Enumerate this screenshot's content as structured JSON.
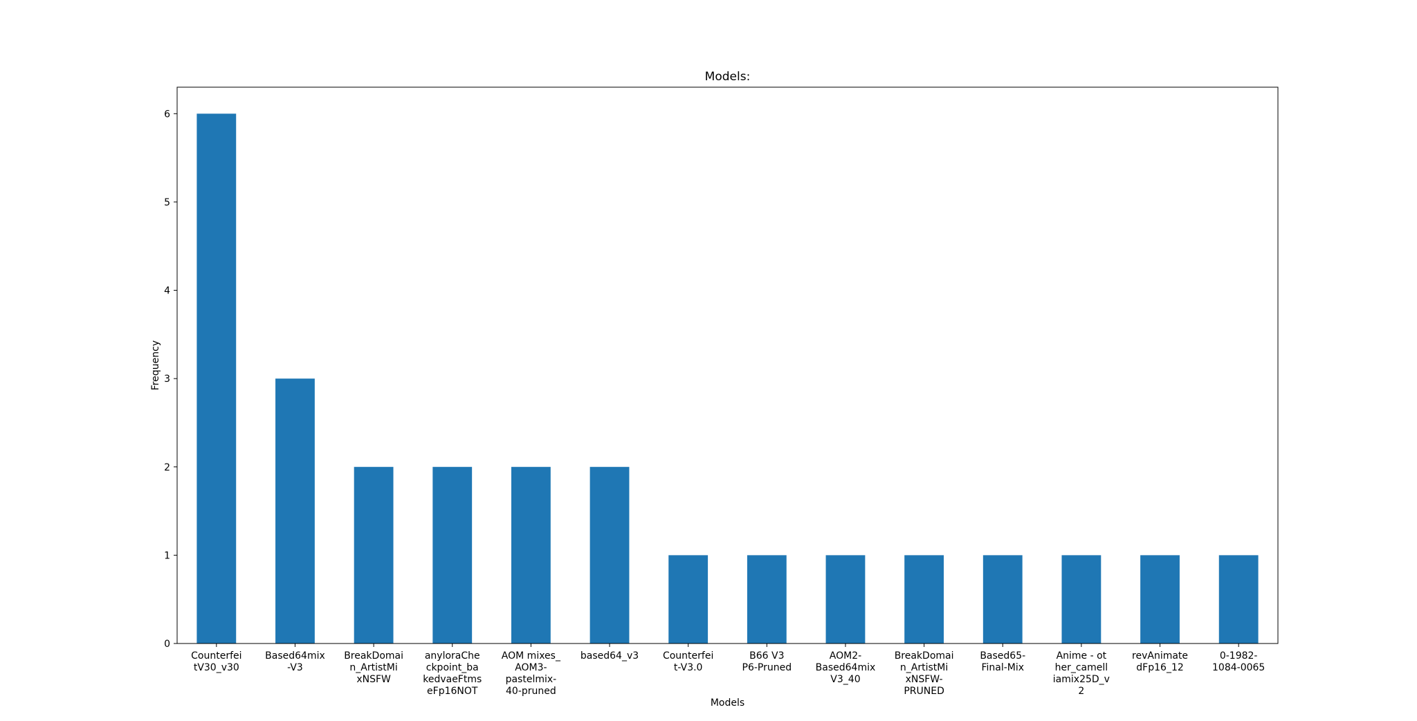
{
  "chart_data": {
    "type": "bar",
    "title": "Models:",
    "xlabel": "Models",
    "ylabel": "Frequency",
    "categories": [
      "Counterfei\ntV30_v30",
      "Based64mix\n-V3",
      "BreakDomai\nn_ArtistMi\nxNSFW",
      "anyloraChe\nckpoint_ba\nkedvaeFtms\neFp16NOT",
      "AOM mixes_\nAOM3-\npastelmix-\n40-pruned",
      "based64_v3",
      "Counterfei\nt-V3.0",
      "B66 V3\nP6-Pruned",
      "AOM2-\nBased64mix\nV3_40",
      "BreakDomai\nn_ArtistMi\nxNSFW-\nPRUNED",
      "Based65-\nFinal-Mix",
      "Anime - ot\nher_camell\niamix25D_v\n2",
      "revAnimate\ndFp16_12",
      "0-1982-\n1084-0065"
    ],
    "values": [
      6,
      3,
      2,
      2,
      2,
      2,
      1,
      1,
      1,
      1,
      1,
      1,
      1,
      1
    ],
    "yticks": [
      "0",
      "1",
      "2",
      "3",
      "4",
      "5",
      "6"
    ],
    "ylim": [
      0,
      6.3
    ],
    "bar_color": "#1f77b4",
    "grid": false,
    "legend": "none"
  }
}
